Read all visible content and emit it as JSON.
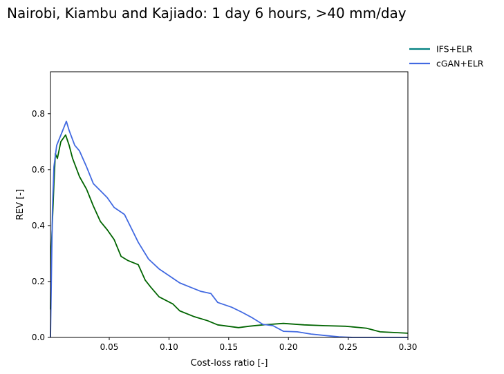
{
  "chart_data": {
    "type": "line",
    "title": "Nairobi, Kiambu and Kajiado: 1 day 6 hours, >40 mm/day",
    "xlabel": "Cost-loss ratio [-]",
    "ylabel": "REV [-]",
    "xlim": [
      0.0008,
      0.3
    ],
    "ylim": [
      0.0,
      0.95
    ],
    "xticks": [
      0.05,
      0.1,
      0.15,
      0.2,
      0.25,
      0.3
    ],
    "xtick_labels": [
      "0.05",
      "0.10",
      "0.15",
      "0.20",
      "0.25",
      "0.30"
    ],
    "yticks": [
      0.0,
      0.2,
      0.4,
      0.6,
      0.8
    ],
    "ytick_labels": [
      "0.0",
      "0.2",
      "0.4",
      "0.6",
      "0.8"
    ],
    "grid": false,
    "legend_placement": "outside top-right",
    "series": [
      {
        "name": "IFS+ELR",
        "legend_color": "#008080",
        "line_color": "#006400",
        "x": [
          0.0008,
          0.0014,
          0.0037,
          0.0049,
          0.0066,
          0.0095,
          0.0135,
          0.0164,
          0.0193,
          0.0251,
          0.031,
          0.0367,
          0.0425,
          0.0483,
          0.0541,
          0.0599,
          0.0657,
          0.0743,
          0.0801,
          0.0847,
          0.0917,
          0.1032,
          0.109,
          0.1206,
          0.1322,
          0.1408,
          0.1496,
          0.1582,
          0.1669,
          0.1785,
          0.1958,
          0.2132,
          0.2306,
          0.248,
          0.2653,
          0.2768,
          0.3
        ],
        "y": [
          0.1,
          0.3,
          0.55,
          0.657,
          0.64,
          0.7,
          0.724,
          0.687,
          0.64,
          0.575,
          0.53,
          0.47,
          0.415,
          0.385,
          0.35,
          0.29,
          0.275,
          0.26,
          0.205,
          0.18,
          0.145,
          0.12,
          0.095,
          0.075,
          0.06,
          0.045,
          0.04,
          0.035,
          0.04,
          0.045,
          0.05,
          0.045,
          0.042,
          0.04,
          0.033,
          0.02,
          0.015
        ]
      },
      {
        "name": "cGAN+ELR",
        "legend_color": "#4169e1",
        "line_color": "#4169e1",
        "x": [
          0.0008,
          0.0025,
          0.0037,
          0.006,
          0.0106,
          0.0141,
          0.0164,
          0.0211,
          0.0251,
          0.031,
          0.0367,
          0.0425,
          0.0483,
          0.0541,
          0.0627,
          0.0685,
          0.0743,
          0.0829,
          0.0917,
          0.1003,
          0.109,
          0.1177,
          0.1264,
          0.1351,
          0.1408,
          0.1524,
          0.1611,
          0.1698,
          0.1785,
          0.1871,
          0.1958,
          0.2074,
          0.2189,
          0.2306,
          0.2421,
          0.2537,
          0.3
        ],
        "y": [
          0.0,
          0.465,
          0.61,
          0.687,
          0.735,
          0.773,
          0.74,
          0.687,
          0.667,
          0.61,
          0.55,
          0.525,
          0.5,
          0.465,
          0.44,
          0.39,
          0.34,
          0.28,
          0.245,
          0.22,
          0.195,
          0.18,
          0.165,
          0.157,
          0.125,
          0.108,
          0.09,
          0.07,
          0.047,
          0.042,
          0.022,
          0.02,
          0.012,
          0.007,
          0.002,
          0.0,
          0.0
        ]
      }
    ]
  }
}
